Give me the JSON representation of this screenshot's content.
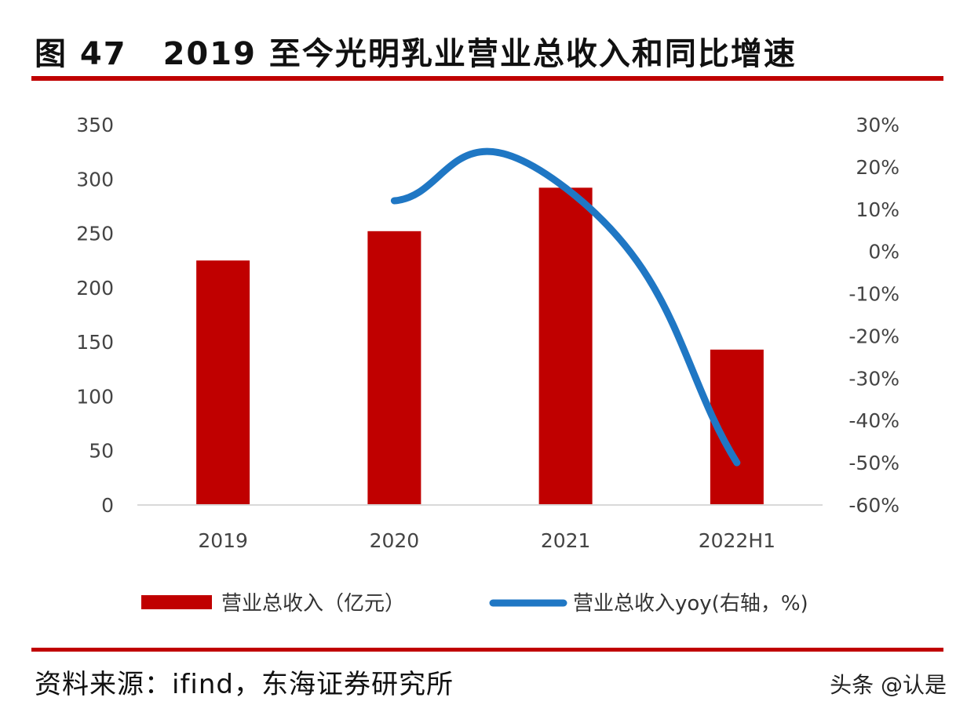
{
  "header": {
    "figure_no": "图 47",
    "title": "2019 至今光明乳业营业总收入和同比增速"
  },
  "chart_data": {
    "type": "bar",
    "categories": [
      "2019",
      "2020",
      "2021",
      "2022H1"
    ],
    "series": [
      {
        "name": "营业总收入（亿元）",
        "type": "bar",
        "axis": "left",
        "color": "#c00000",
        "values": [
          225,
          252,
          292,
          143
        ]
      },
      {
        "name": "营业总收入yoy(右轴，%)",
        "type": "line",
        "axis": "right",
        "color": "#1f77c4",
        "values": [
          null,
          12,
          15,
          -50
        ]
      }
    ],
    "y_left": {
      "lim": [
        0,
        350
      ],
      "ticks": [
        0,
        50,
        100,
        150,
        200,
        250,
        300,
        350
      ],
      "tick_labels": [
        "0",
        "50",
        "100",
        "150",
        "200",
        "250",
        "300",
        "350"
      ]
    },
    "y_right": {
      "lim": [
        -60,
        30
      ],
      "ticks": [
        -60,
        -50,
        -40,
        -30,
        -20,
        -10,
        0,
        10,
        20,
        30
      ],
      "tick_labels": [
        "-60%",
        "-50%",
        "-40%",
        "-30%",
        "-20%",
        "-10%",
        "0%",
        "10%",
        "20%",
        "30%"
      ]
    },
    "legend_position": "bottom",
    "grid": false
  },
  "footer": {
    "source": "资料来源：ifind，东海证券研究所",
    "watermark": "头条 @认是"
  }
}
